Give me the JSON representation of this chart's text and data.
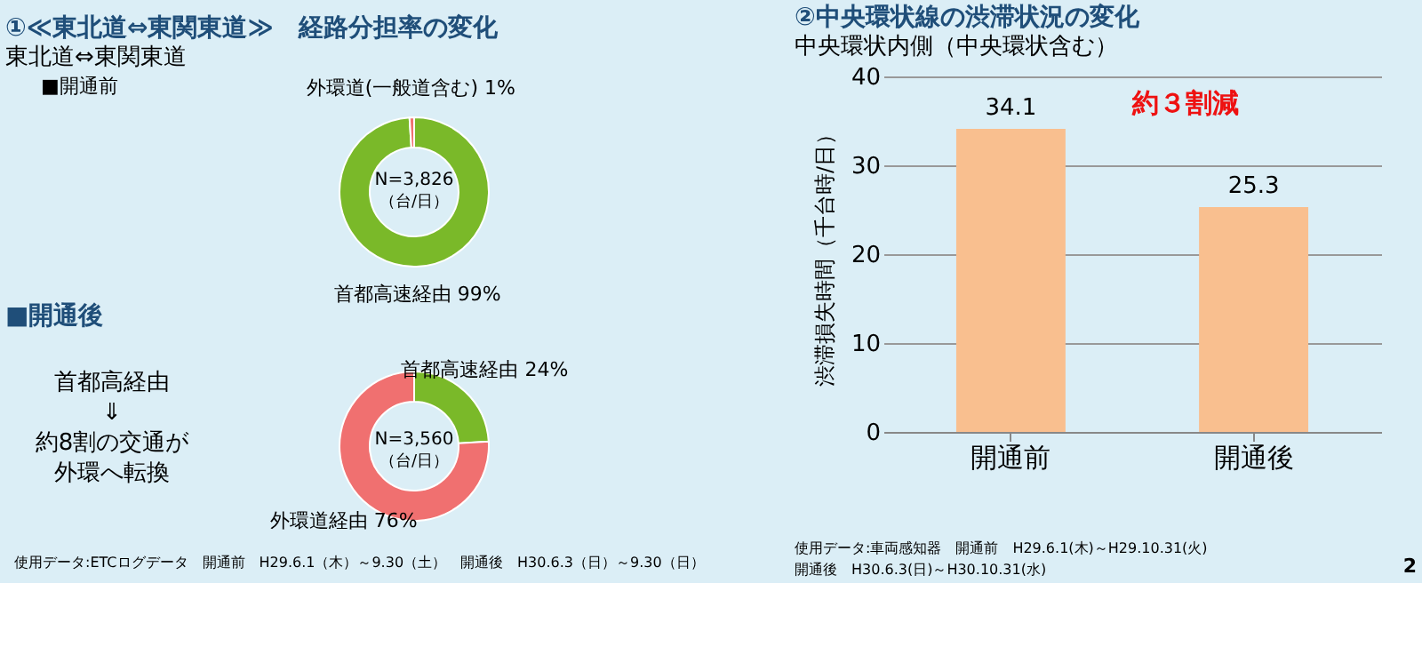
{
  "chart_data": [
    {
      "type": "donut",
      "title": "①≪東北道⇔東関東道≫　経路分担率の変化",
      "subtitle": "東北道⇔東関東道",
      "categories": [
        "首都高速経由",
        "外環道(一般道含む)"
      ],
      "values": [
        99,
        1
      ],
      "colors": [
        "#7ab929",
        "#f07070"
      ],
      "value_labels": [
        "99%",
        "1%"
      ],
      "annotations": [
        "■開通前",
        "N=3,826",
        "（台/日）"
      ]
    },
    {
      "type": "donut",
      "title": "■開通後",
      "categories": [
        "首都高速経由",
        "外環道経由"
      ],
      "values": [
        24,
        76
      ],
      "colors": [
        "#7ab929",
        "#f07070"
      ],
      "value_labels": [
        "24%",
        "76%"
      ],
      "annotations": [
        "N=3,560",
        "（台/日）",
        "首都高経由",
        "⇓",
        "約8割の交通が",
        "外環へ転換",
        "使用データ:ETCログデータ　開通前　H29.6.1（木）～9.30（土）　開通後　H30.6.3（日）～9.30（日）"
      ]
    },
    {
      "type": "bar",
      "title": "②中央環状線の渋滞状況の変化",
      "subtitle": "中央環状内側（中央環状含む）",
      "categories": [
        "開通前",
        "開通後"
      ],
      "values": [
        34.1,
        25.3
      ],
      "color": "#f9bf8f",
      "ylim": [
        0,
        40
      ],
      "yticks": [
        0,
        10,
        20,
        30,
        40
      ],
      "grid": "y",
      "ylabel": "渋滞損失時間（千台時/日）",
      "data_labels": true,
      "annotations": [
        "約３割減",
        "使用データ:車両感知器　開通前　H29.6.1(木)～H29.10.31(火)",
        "開通後　H30.6.3(日)～H30.10.31(水)",
        "2"
      ]
    }
  ]
}
